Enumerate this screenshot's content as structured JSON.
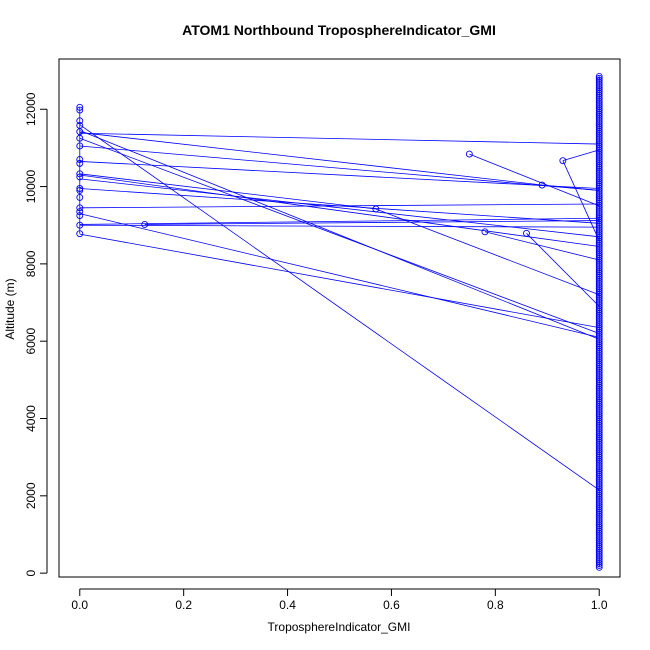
{
  "chart_data": {
    "type": "line",
    "title": "ATOM1 Northbound TroposphereIndicator_GMI",
    "xlabel": "TroposphereIndicator_GMI",
    "ylabel": "Altitude (m)",
    "xlim": [
      -0.04,
      1.04
    ],
    "ylim": [
      -100,
      13300
    ],
    "x_ticks": [
      0.0,
      0.2,
      0.4,
      0.6,
      0.8,
      1.0
    ],
    "x_tick_labels": [
      "0.0",
      "0.2",
      "0.4",
      "0.6",
      "0.8",
      "1.0"
    ],
    "y_ticks": [
      0,
      2000,
      4000,
      6000,
      8000,
      10000,
      12000
    ],
    "y_tick_labels": [
      "0",
      "2000",
      "4000",
      "6000",
      "8000",
      "10000",
      "12000"
    ],
    "grid": false,
    "legend": "none",
    "colors": {
      "series": "#0000ff",
      "axes": "#000000"
    },
    "series": [
      {
        "marker": "open-circle",
        "points": [
          {
            "x": 0.0,
            "y": 12050
          },
          {
            "x": 0.0,
            "y": 11980
          },
          {
            "x": 0.0,
            "y": 11700
          },
          {
            "x": 0.0,
            "y": 11580
          },
          {
            "x": 0.0,
            "y": 11420
          },
          {
            "x": 0.0,
            "y": 11250
          },
          {
            "x": 0.0,
            "y": 11050
          },
          {
            "x": 0.0,
            "y": 10700
          },
          {
            "x": 0.0,
            "y": 10600
          },
          {
            "x": 0.0,
            "y": 10330
          },
          {
            "x": 0.0,
            "y": 10250
          },
          {
            "x": 0.0,
            "y": 9950
          },
          {
            "x": 0.0,
            "y": 9900
          },
          {
            "x": 0.0,
            "y": 9720
          },
          {
            "x": 0.0,
            "y": 9450
          },
          {
            "x": 0.0,
            "y": 9350
          },
          {
            "x": 0.0,
            "y": 9250
          },
          {
            "x": 0.0,
            "y": 9000
          },
          {
            "x": 0.0,
            "y": 8780
          },
          {
            "x": 0.125,
            "y": 9020
          },
          {
            "x": 0.57,
            "y": 9420
          },
          {
            "x": 0.75,
            "y": 10840
          },
          {
            "x": 0.78,
            "y": 8830
          },
          {
            "x": 0.86,
            "y": 8790
          },
          {
            "x": 0.89,
            "y": 10040
          },
          {
            "x": 0.93,
            "y": 10670
          }
        ]
      }
    ],
    "segments": [
      [
        0.0,
        11600,
        1.0,
        2150
      ],
      [
        0.0,
        11450,
        1.0,
        6050
      ],
      [
        0.0,
        11380,
        1.0,
        11100
      ],
      [
        0.0,
        11400,
        0.89,
        10040
      ],
      [
        0.0,
        11250,
        1.0,
        6200
      ],
      [
        0.0,
        11050,
        1.0,
        9900
      ],
      [
        0.0,
        10650,
        1.0,
        9950
      ],
      [
        0.0,
        10330,
        0.57,
        9420
      ],
      [
        0.0,
        10300,
        1.0,
        8450
      ],
      [
        0.0,
        10200,
        1.0,
        8700
      ],
      [
        0.0,
        9950,
        1.0,
        9050
      ],
      [
        0.0,
        9450,
        1.0,
        9550
      ],
      [
        0.0,
        9300,
        1.0,
        6100
      ],
      [
        0.0,
        9020,
        1.0,
        9180
      ],
      [
        0.0,
        9000,
        1.0,
        8950
      ],
      [
        0.0,
        8770,
        1.0,
        6350
      ],
      [
        0.125,
        9020,
        1.0,
        9120
      ],
      [
        0.57,
        9420,
        1.0,
        7200
      ],
      [
        0.75,
        10840,
        1.0,
        9500
      ],
      [
        0.78,
        8830,
        1.0,
        8100
      ],
      [
        0.86,
        8790,
        1.0,
        6900
      ],
      [
        0.89,
        10040,
        1.0,
        9900
      ],
      [
        0.93,
        10670,
        1.0,
        10950
      ],
      [
        0.93,
        10670,
        1.0,
        8600
      ]
    ],
    "column_at_x1": {
      "x": 1.0,
      "y_min": 150,
      "y_max": 12850
    }
  }
}
